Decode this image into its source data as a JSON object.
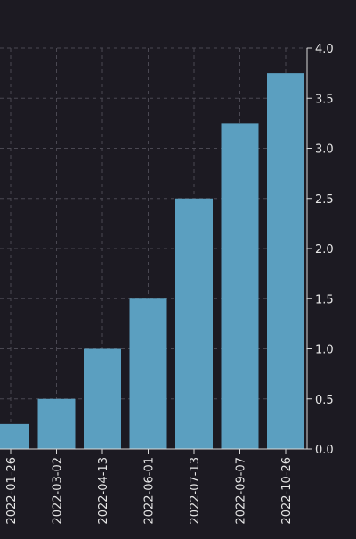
{
  "chart_data": {
    "type": "bar",
    "categories": [
      "2022-01-26",
      "2022-03-02",
      "2022-04-13",
      "2022-06-01",
      "2022-07-13",
      "2022-09-07",
      "2022-10-26"
    ],
    "values": [
      0.25,
      0.5,
      1.0,
      1.5,
      2.5,
      3.25,
      3.75
    ],
    "ylim": [
      0,
      4.0
    ],
    "yticks": [
      "0.0",
      "0.5",
      "1.0",
      "1.5",
      "2.0",
      "2.5",
      "3.0",
      "3.5",
      "4.0"
    ],
    "ytick_values": [
      0,
      0.5,
      1.0,
      1.5,
      2.0,
      2.5,
      3.0,
      3.5,
      4.0
    ],
    "y_axis_side": "right",
    "grid": true,
    "colors": {
      "background": "#1c1a22",
      "bar": "#5b9fc0",
      "grid": "#4a4852",
      "axis": "#d8d8d8",
      "text": "#e6e6e6"
    }
  }
}
